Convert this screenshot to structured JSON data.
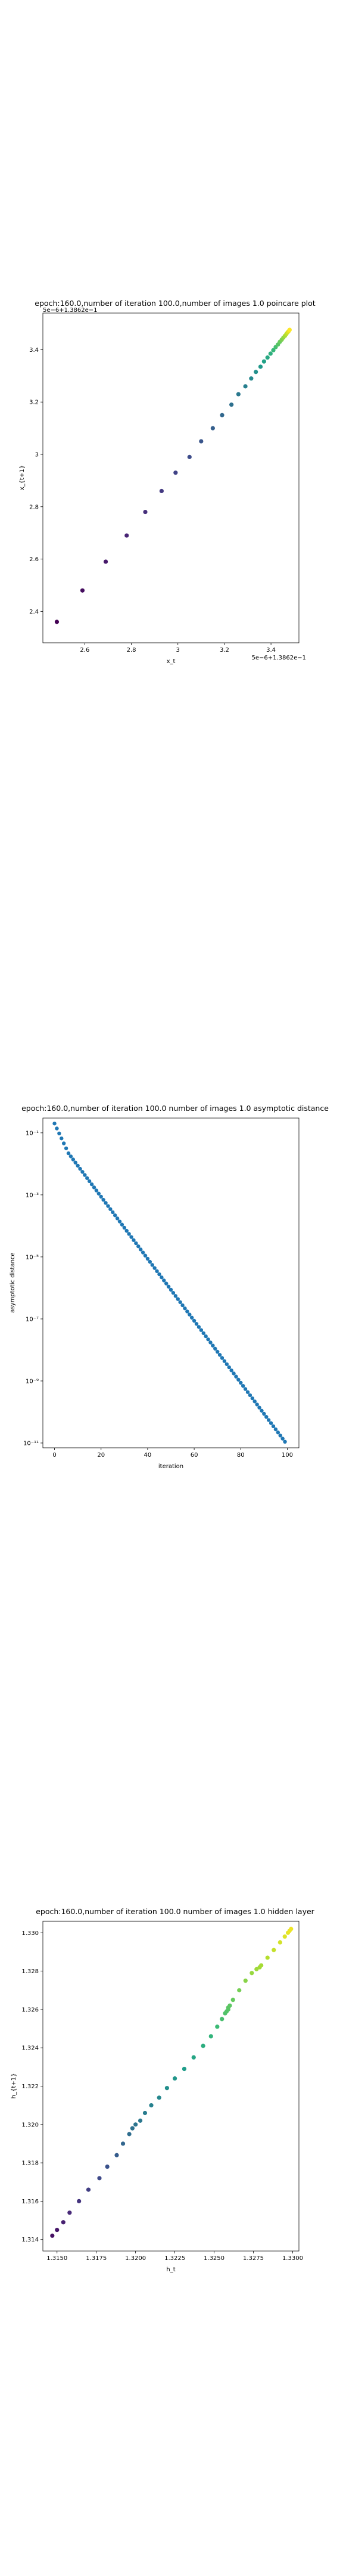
{
  "chart_data": [
    {
      "type": "scatter",
      "title": "epoch:160.0,number of iteration 100.0,number of images 1.0 poincare plot",
      "xlabel": "x_t",
      "ylabel": "x_{t+1}",
      "offset_x": "5e−6+1.3862e−1",
      "offset_y": "5e−6+1.3862e−1",
      "xlim": [
        2.42,
        3.52
      ],
      "ylim": [
        2.28,
        3.54
      ],
      "xticks": [
        2.6,
        2.8,
        3.0,
        3.2,
        3.4
      ],
      "yticks": [
        2.4,
        2.6,
        2.8,
        3.0,
        3.2,
        3.4
      ],
      "colormap": "viridis",
      "x": [
        2.48,
        2.59,
        2.69,
        2.78,
        2.86,
        2.93,
        2.99,
        3.05,
        3.1,
        3.15,
        3.19,
        3.23,
        3.26,
        3.29,
        3.315,
        3.335,
        3.355,
        3.37,
        3.385,
        3.398,
        3.41,
        3.42,
        3.43,
        3.438,
        3.446,
        3.453,
        3.46,
        3.466,
        3.471,
        3.476,
        3.48
      ],
      "y": [
        2.36,
        2.48,
        2.59,
        2.69,
        2.78,
        2.86,
        2.93,
        2.99,
        3.05,
        3.1,
        3.15,
        3.19,
        3.23,
        3.26,
        3.29,
        3.315,
        3.335,
        3.355,
        3.37,
        3.385,
        3.398,
        3.41,
        3.42,
        3.43,
        3.438,
        3.446,
        3.453,
        3.46,
        3.466,
        3.471,
        3.476
      ]
    },
    {
      "type": "scatter",
      "title": "epoch:160.0,number of iteration 100.0  number of images 1.0 asymptotic distance",
      "xlabel": "iteration",
      "ylabel": "asymptotic distance",
      "yscale": "log",
      "xlim": [
        -5,
        105
      ],
      "ylim": [
        7e-12,
        0.3
      ],
      "xticks": [
        0,
        20,
        40,
        60,
        80,
        100
      ],
      "yticks": [
        1e-11,
        1e-09,
        1e-07,
        1e-05,
        0.001,
        0.1
      ],
      "ytick_labels": [
        "10⁻¹¹",
        "10⁻⁹",
        "10⁻⁷",
        "10⁻⁵",
        "10⁻³",
        "10⁻¹"
      ],
      "color": "#1f77b4",
      "x_start": 0,
      "x_end": 99,
      "y_start": 0.2,
      "y_log_slope": -0.1
    },
    {
      "type": "scatter",
      "title": "epoch:160.0,number of iteration 100.0  number of images 1.0 hidden layer",
      "xlabel": "h_t",
      "ylabel": "h_{t+1}",
      "xlim": [
        1.3141,
        1.3304
      ],
      "ylim": [
        1.3134,
        1.3306
      ],
      "xticks": [
        1.315,
        1.3175,
        1.32,
        1.3225,
        1.325,
        1.3275,
        1.33
      ],
      "xtick_labels": [
        "1.3150",
        "1.3175",
        "1.3200",
        "1.3225",
        "1.3250",
        "1.3275",
        "1.3300"
      ],
      "yticks": [
        1.314,
        1.316,
        1.318,
        1.32,
        1.322,
        1.324,
        1.326,
        1.328,
        1.33
      ],
      "ytick_labels": [
        "1.314",
        "1.316",
        "1.318",
        "1.320",
        "1.322",
        "1.324",
        "1.326",
        "1.328",
        "1.330"
      ],
      "colormap": "viridis",
      "x": [
        1.3147,
        1.315,
        1.3154,
        1.3158,
        1.3164,
        1.317,
        1.3177,
        1.3182,
        1.3188,
        1.3192,
        1.3196,
        1.3198,
        1.32,
        1.3203,
        1.3206,
        1.321,
        1.3215,
        1.322,
        1.3225,
        1.3231,
        1.3237,
        1.3243,
        1.3248,
        1.3252,
        1.3255,
        1.3257,
        1.3258,
        1.3259,
        1.3259,
        1.326,
        1.3262,
        1.3266,
        1.327,
        1.3274,
        1.3277,
        1.3279,
        1.328,
        1.3284,
        1.3288,
        1.3292,
        1.3295,
        1.3297,
        1.3298,
        1.3299
      ],
      "y": [
        1.3142,
        1.3145,
        1.3149,
        1.3154,
        1.316,
        1.3166,
        1.3172,
        1.3178,
        1.3184,
        1.319,
        1.3195,
        1.3198,
        1.32,
        1.3202,
        1.3206,
        1.321,
        1.3214,
        1.3219,
        1.3224,
        1.3229,
        1.3235,
        1.3241,
        1.3246,
        1.3251,
        1.3255,
        1.3258,
        1.3259,
        1.326,
        1.3261,
        1.3262,
        1.3265,
        1.327,
        1.3275,
        1.3279,
        1.3281,
        1.3282,
        1.3283,
        1.3287,
        1.3291,
        1.3295,
        1.3298,
        1.33,
        1.3301,
        1.3302
      ]
    }
  ]
}
